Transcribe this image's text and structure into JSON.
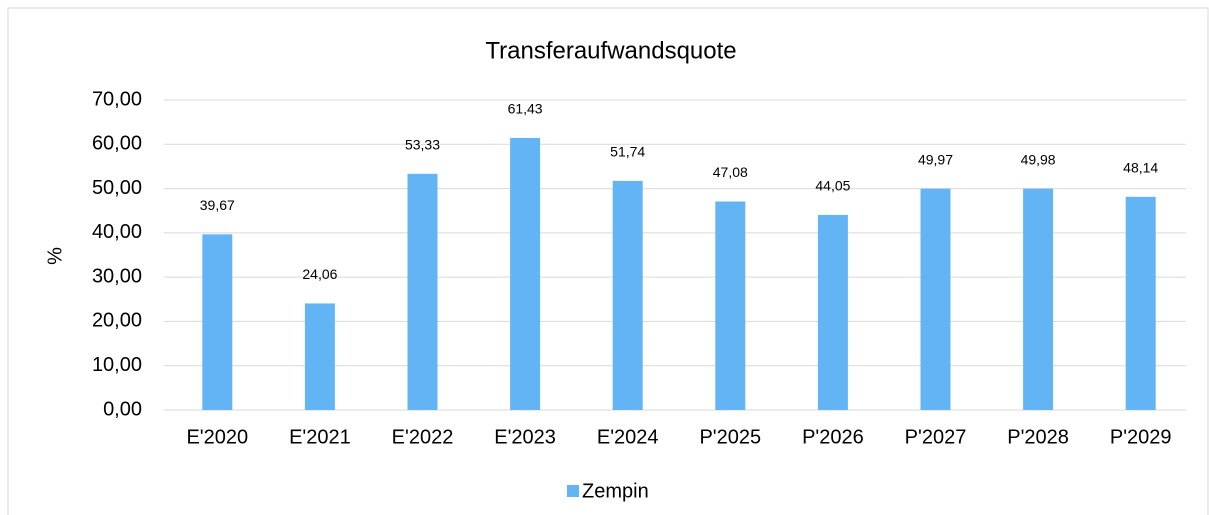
{
  "chart_data": {
    "type": "bar",
    "title": "Transferaufwandsquote",
    "y_label": "%",
    "categories": [
      "E'2020",
      "E'2021",
      "E'2022",
      "E'2023",
      "E'2024",
      "P'2025",
      "P'2026",
      "P'2027",
      "P'2028",
      "P'2029"
    ],
    "series": [
      {
        "name": "Zempin",
        "color": "#63b4f4",
        "values": [
          39.67,
          24.06,
          53.33,
          61.43,
          51.74,
          47.08,
          44.05,
          49.97,
          49.98,
          48.14
        ],
        "value_labels": [
          "39,67",
          "24,06",
          "53,33",
          "61,43",
          "51,74",
          "47,08",
          "44,05",
          "49,97",
          "49,98",
          "48,14"
        ]
      }
    ],
    "ylim": [
      0,
      70
    ],
    "yticks": [
      {
        "value": 0,
        "label": "0,00"
      },
      {
        "value": 10,
        "label": "10,00"
      },
      {
        "value": 20,
        "label": "20,00"
      },
      {
        "value": 30,
        "label": "30,00"
      },
      {
        "value": 40,
        "label": "40,00"
      },
      {
        "value": 50,
        "label": "50,00"
      },
      {
        "value": 60,
        "label": "60,00"
      },
      {
        "value": 70,
        "label": "70,00"
      }
    ],
    "grid": true,
    "legend": "bottom"
  }
}
